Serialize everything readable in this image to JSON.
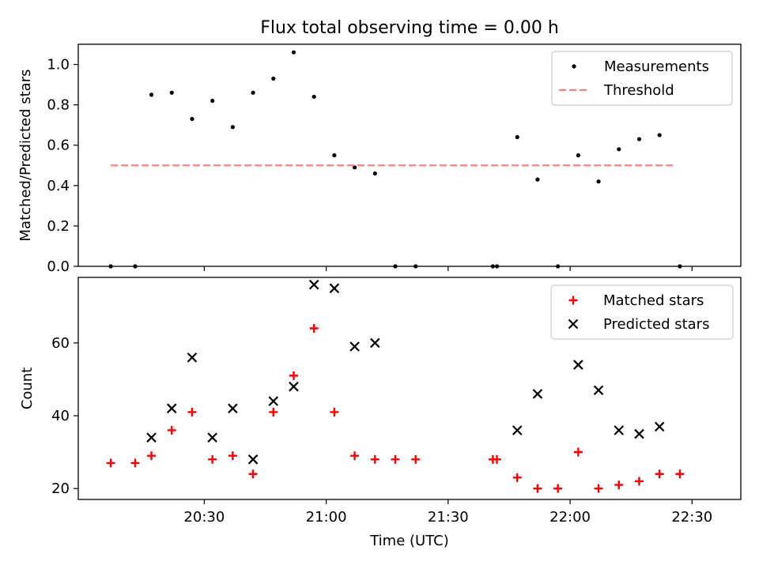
{
  "chart_data": {
    "type": "scatter",
    "title": "Flux total observing time = 0.00 h",
    "shared_x": {
      "label": "Time (UTC)",
      "ticks": [
        {
          "t": 30,
          "label": "20:30"
        },
        {
          "t": 60,
          "label": "21:00"
        },
        {
          "t": 90,
          "label": "21:30"
        },
        {
          "t": 120,
          "label": "22:00"
        },
        {
          "t": 150,
          "label": "22:30"
        }
      ],
      "range": [
        -1,
        162
      ]
    },
    "panels": [
      {
        "ylabel": "Matched/Predicted stars",
        "ylim": [
          0,
          1.1
        ],
        "yticks": [
          "0.0",
          "0.2",
          "0.4",
          "0.6",
          "0.8",
          "1.0"
        ],
        "ytick_values": [
          0,
          0.2,
          0.4,
          0.6,
          0.8,
          1.0
        ],
        "legend": "top-right",
        "series": [
          {
            "name": "Measurements",
            "marker": "dot",
            "color": "#000000",
            "x": [
              7,
              13,
              17,
              22,
              27,
              32,
              37,
              42,
              47,
              52,
              57,
              62,
              67,
              72,
              77,
              82,
              101,
              102,
              107,
              112,
              117,
              122,
              127,
              132,
              137,
              142,
              147
            ],
            "y": [
              0,
              0,
              0.85,
              0.86,
              0.73,
              0.82,
              0.69,
              0.86,
              0.93,
              1.06,
              0.84,
              0.55,
              0.49,
              0.46,
              0,
              0,
              0,
              0,
              0.64,
              0.43,
              0,
              0.55,
              0.42,
              0.58,
              0.63,
              0.65,
              0
            ]
          },
          {
            "name": "Threshold",
            "marker": "dashed-line",
            "color": "#ff7f7f",
            "x": [
              7,
              146
            ],
            "y": [
              0.5,
              0.5
            ]
          }
        ]
      },
      {
        "ylabel": "Count",
        "ylim": [
          17,
          78
        ],
        "yticks": [
          "20",
          "40",
          "60"
        ],
        "ytick_values": [
          20,
          40,
          60
        ],
        "legend": "top-right",
        "series": [
          {
            "name": "Matched stars",
            "marker": "plus",
            "color": "#ff0000",
            "x": [
              7,
              13,
              17,
              22,
              27,
              32,
              37,
              42,
              47,
              52,
              57,
              62,
              67,
              72,
              77,
              82,
              101,
              102,
              107,
              112,
              117,
              122,
              127,
              132,
              137,
              142,
              147
            ],
            "y": [
              27,
              27,
              29,
              36,
              41,
              28,
              29,
              24,
              41,
              51,
              64,
              41,
              29,
              28,
              28,
              28,
              28,
              28,
              23,
              20,
              20,
              30,
              20,
              21,
              22,
              24,
              24
            ]
          },
          {
            "name": "Predicted stars",
            "marker": "x",
            "color": "#000000",
            "x": [
              17,
              22,
              27,
              32,
              37,
              42,
              47,
              52,
              57,
              62,
              67,
              72,
              107,
              112,
              122,
              127,
              132,
              137,
              142
            ],
            "y": [
              34,
              42,
              56,
              34,
              42,
              28,
              44,
              48,
              76,
              75,
              59,
              60,
              36,
              46,
              54,
              47,
              36,
              35,
              37
            ]
          }
        ]
      }
    ]
  }
}
